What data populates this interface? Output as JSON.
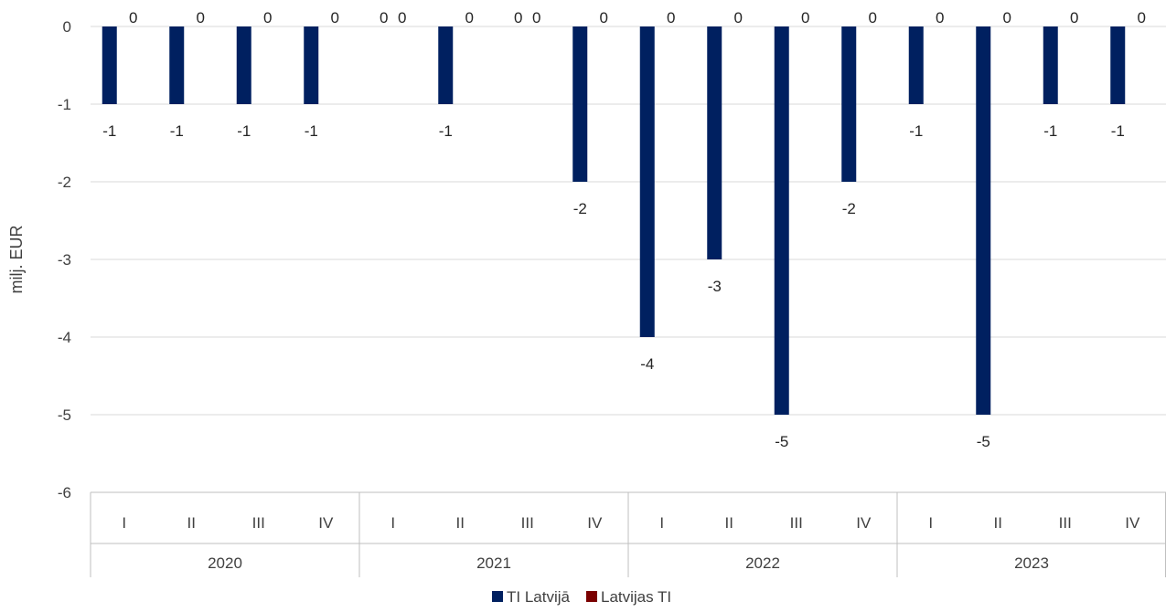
{
  "chart_data": {
    "type": "bar",
    "ylabel": "milj. EUR",
    "ylim": [
      -6,
      0
    ],
    "yticks": [
      0,
      -1,
      -2,
      -3,
      -4,
      -5,
      -6
    ],
    "grid": true,
    "legend_position": "bottom",
    "groups": [
      {
        "label": "2020",
        "categories": [
          "I",
          "II",
          "III",
          "IV"
        ]
      },
      {
        "label": "2021",
        "categories": [
          "I",
          "II",
          "III",
          "IV"
        ]
      },
      {
        "label": "2022",
        "categories": [
          "I",
          "II",
          "III",
          "IV"
        ]
      },
      {
        "label": "2023",
        "categories": [
          "I",
          "II",
          "III",
          "IV"
        ]
      }
    ],
    "series": [
      {
        "name": "TI Latvijā",
        "color": "#002060",
        "values": [
          -1,
          -1,
          -1,
          -1,
          null,
          -1,
          null,
          -2,
          -4,
          -3,
          -5,
          -2,
          -1,
          -5,
          -1,
          -1
        ]
      },
      {
        "name": "Latvijas TI",
        "color": "#7B0000",
        "values": [
          0,
          0,
          0,
          0,
          0,
          0,
          0,
          0,
          0,
          0,
          0,
          0,
          0,
          0,
          0,
          0
        ]
      }
    ],
    "extra_zero_labels": [
      4,
      6
    ]
  }
}
